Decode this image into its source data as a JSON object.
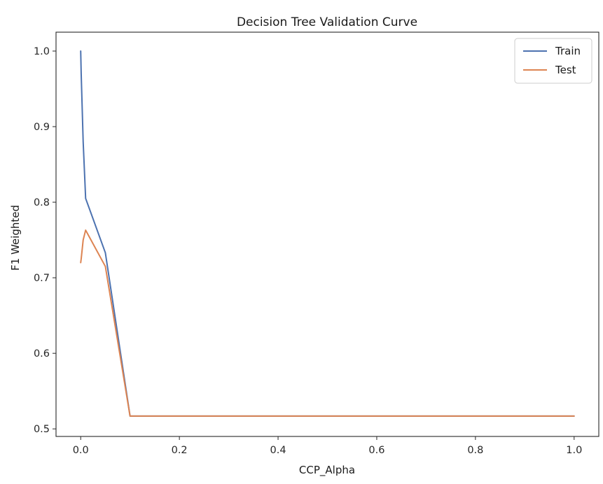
{
  "chart_data": {
    "type": "line",
    "title": "Decision Tree Validation Curve",
    "xlabel": "CCP_Alpha",
    "ylabel": "F1 Weighted",
    "xlim": [
      -0.05,
      1.05
    ],
    "ylim": [
      0.49,
      1.025
    ],
    "xticks": [
      0.0,
      0.2,
      0.4,
      0.6,
      0.8,
      1.0
    ],
    "xtick_labels": [
      "0.0",
      "0.2",
      "0.4",
      "0.6",
      "0.8",
      "1.0"
    ],
    "yticks": [
      0.5,
      0.6,
      0.7,
      0.8,
      0.9,
      1.0
    ],
    "ytick_labels": [
      "0.5",
      "0.6",
      "0.7",
      "0.8",
      "0.9",
      "1.0"
    ],
    "grid": false,
    "legend": "top-right",
    "x": [
      0.0,
      0.001,
      0.005,
      0.01,
      0.05,
      0.1,
      0.2,
      0.3,
      0.4,
      0.5,
      0.6,
      0.7,
      0.8,
      0.9,
      1.0
    ],
    "series": [
      {
        "name": "Train",
        "color": "#4c72b0",
        "values": [
          1.0,
          0.97,
          0.88,
          0.805,
          0.733,
          0.517,
          0.517,
          0.517,
          0.517,
          0.517,
          0.517,
          0.517,
          0.517,
          0.517,
          0.517
        ]
      },
      {
        "name": "Test",
        "color": "#dd8452",
        "values": [
          0.72,
          0.725,
          0.75,
          0.763,
          0.715,
          0.517,
          0.517,
          0.517,
          0.517,
          0.517,
          0.517,
          0.517,
          0.517,
          0.517,
          0.517
        ]
      }
    ]
  }
}
